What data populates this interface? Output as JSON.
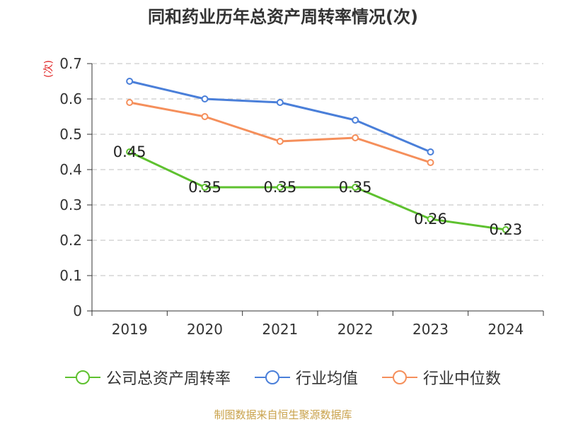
{
  "title": "同和药业历年总资产周转率情况(次)",
  "source": "制图数据来自恒生聚源数据库",
  "chart_data": {
    "type": "line",
    "title": "同和药业历年总资产周转率情况(次)",
    "ylabel": "(次)",
    "ylim": [
      0,
      0.7
    ],
    "yticks": [
      "0",
      "0.1",
      "0.2",
      "0.3",
      "0.4",
      "0.5",
      "0.6",
      "0.7"
    ],
    "categories": [
      "2019",
      "2020",
      "2021",
      "2022",
      "2023",
      "2024"
    ],
    "grid": true,
    "legend_position": "bottom",
    "series": [
      {
        "name": "公司总资产周转率",
        "color": "#5ec12f",
        "values": [
          0.45,
          0.35,
          0.35,
          0.35,
          0.26,
          0.23
        ],
        "labels": [
          "0.45",
          "0.35",
          "0.35",
          "0.35",
          "0.26",
          "0.23"
        ]
      },
      {
        "name": "行业均值",
        "color": "#4a7fd9",
        "values": [
          0.65,
          0.6,
          0.59,
          0.54,
          0.45,
          null
        ]
      },
      {
        "name": "行业中位数",
        "color": "#f58f5b",
        "values": [
          0.59,
          0.55,
          0.48,
          0.49,
          0.42,
          null
        ]
      }
    ]
  }
}
